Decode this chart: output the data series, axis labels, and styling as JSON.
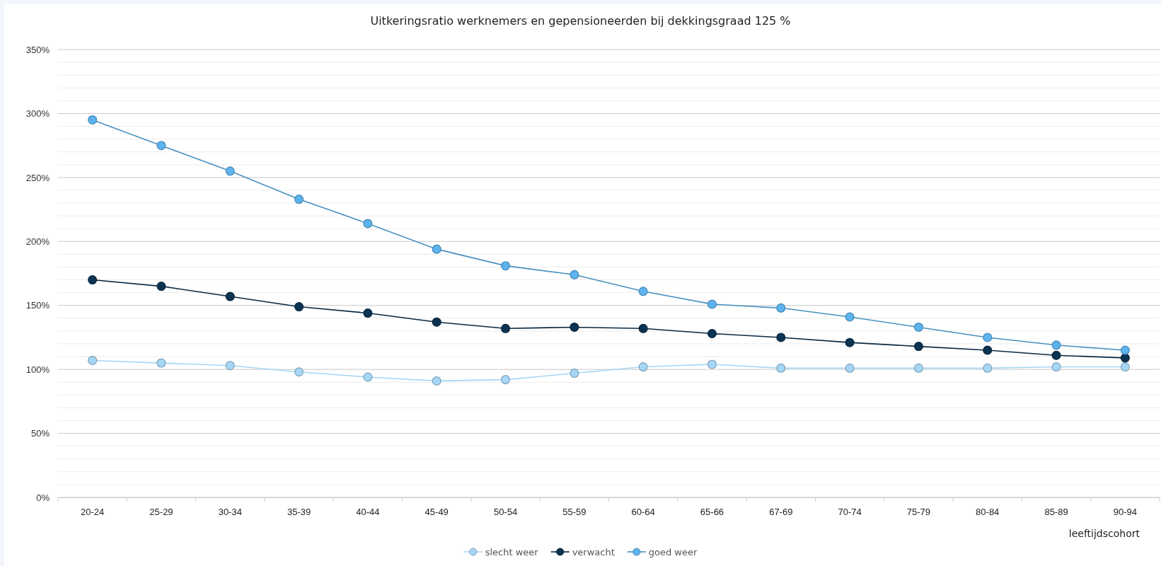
{
  "chart_data": {
    "type": "line",
    "title": "Uitkeringsratio werknemers en gepensioneerden bij dekkingsgraad 125 %",
    "xlabel": "leeftijdscohort",
    "categories": [
      "20-24",
      "25-29",
      "30-34",
      "35-39",
      "40-44",
      "45-49",
      "50-54",
      "55-59",
      "60-64",
      "65-66",
      "67-69",
      "70-74",
      "75-79",
      "80-84",
      "85-89",
      "90-94"
    ],
    "series": [
      {
        "name": "slecht weer",
        "color": "#a6d6f6",
        "values": [
          107,
          105,
          103,
          98,
          94,
          91,
          92,
          97,
          102,
          104,
          101,
          101,
          101,
          101,
          102,
          102
        ]
      },
      {
        "name": "verwacht",
        "color": "#0b3352",
        "values": [
          170,
          165,
          157,
          149,
          144,
          137,
          132,
          133,
          132,
          128,
          125,
          121,
          118,
          115,
          111,
          109
        ]
      },
      {
        "name": "goed weer",
        "color": "#5cb3ee",
        "values": [
          295,
          275,
          255,
          233,
          214,
          194,
          181,
          174,
          161,
          151,
          148,
          141,
          133,
          125,
          119,
          115
        ]
      }
    ],
    "ylim": [
      0,
      350
    ],
    "yticks": [
      {
        "value": 0,
        "label": "0%"
      },
      {
        "value": 10,
        "label": null
      },
      {
        "value": 20,
        "label": null
      },
      {
        "value": 30,
        "label": null
      },
      {
        "value": 40,
        "label": null
      },
      {
        "value": 50,
        "label": "50%"
      },
      {
        "value": 60,
        "label": null
      },
      {
        "value": 70,
        "label": null
      },
      {
        "value": 80,
        "label": null
      },
      {
        "value": 90,
        "label": null
      },
      {
        "value": 100,
        "label": "100%"
      },
      {
        "value": 110,
        "label": null
      },
      {
        "value": 120,
        "label": null
      },
      {
        "value": 130,
        "label": null
      },
      {
        "value": 140,
        "label": null
      },
      {
        "value": 150,
        "label": "150%"
      },
      {
        "value": 160,
        "label": null
      },
      {
        "value": 170,
        "label": null
      },
      {
        "value": 180,
        "label": null
      },
      {
        "value": 190,
        "label": null
      },
      {
        "value": 200,
        "label": "200%"
      },
      {
        "value": 210,
        "label": null
      },
      {
        "value": 220,
        "label": null
      },
      {
        "value": 230,
        "label": null
      },
      {
        "value": 240,
        "label": null
      },
      {
        "value": 250,
        "label": "250%"
      },
      {
        "value": 260,
        "label": null
      },
      {
        "value": 270,
        "label": null
      },
      {
        "value": 280,
        "label": null
      },
      {
        "value": 290,
        "label": null
      },
      {
        "value": 300,
        "label": "300%"
      },
      {
        "value": 310,
        "label": null
      },
      {
        "value": 320,
        "label": null
      },
      {
        "value": 330,
        "label": null
      },
      {
        "value": 340,
        "label": null
      },
      {
        "value": 350,
        "label": "350%"
      }
    ],
    "grid": "y",
    "legend": "bottom",
    "marker": "circle",
    "line_style": "solid"
  }
}
